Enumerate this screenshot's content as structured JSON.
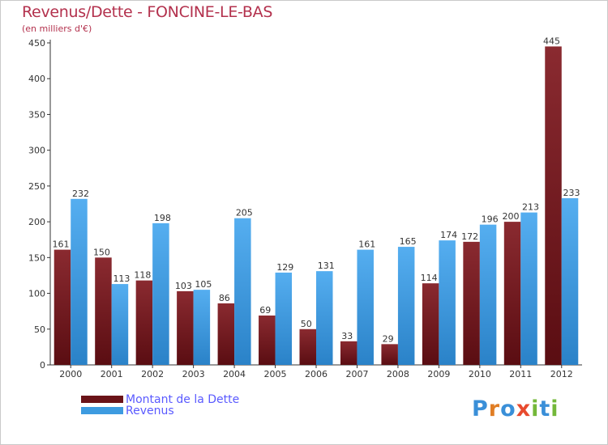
{
  "header": {
    "title": "Revenus/Dette - FONCINE-LE-BAS",
    "subtitle": "(en milliers d'€)"
  },
  "legend": {
    "items": [
      {
        "label": "Montant de la Dette",
        "color": "#7a1c22"
      },
      {
        "label": "Revenus",
        "color": "#3d9be0"
      }
    ]
  },
  "logo": {
    "letters": [
      "P",
      "r",
      "o",
      "x",
      "i",
      "t",
      "i"
    ],
    "colors": [
      "#3a8fd8",
      "#e07d24",
      "#3a8fd8",
      "#e84a2e",
      "#74b83a",
      "#3a8fd8",
      "#74b83a"
    ]
  },
  "chart_data": {
    "type": "bar",
    "title": "Revenus/Dette - FONCINE-LE-BAS",
    "subtitle": "(en milliers d'€)",
    "categories": [
      "2000",
      "2001",
      "2002",
      "2003",
      "2004",
      "2005",
      "2006",
      "2007",
      "2008",
      "2009",
      "2010",
      "2011",
      "2012"
    ],
    "series": [
      {
        "name": "Montant de la Dette",
        "color": "#7a1c22",
        "values": [
          161,
          150,
          118,
          103,
          86,
          69,
          50,
          33,
          29,
          114,
          172,
          200,
          445
        ]
      },
      {
        "name": "Revenus",
        "color": "#3d9be0",
        "values": [
          232,
          113,
          198,
          105,
          205,
          129,
          131,
          161,
          165,
          174,
          196,
          213,
          233
        ]
      }
    ],
    "ylim": [
      0,
      450
    ],
    "yticks": [
      0,
      50,
      100,
      150,
      200,
      250,
      300,
      350,
      400,
      450
    ],
    "grid": false,
    "legend_position": "bottom-left"
  }
}
